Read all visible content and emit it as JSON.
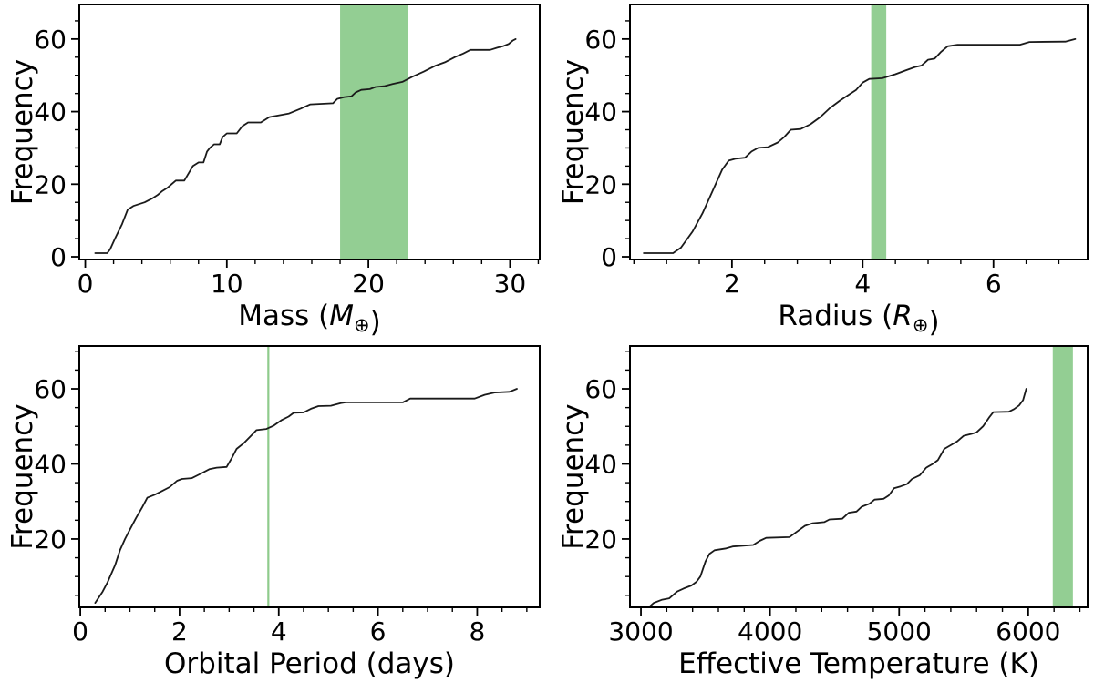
{
  "figure": {
    "background": "#ffffff",
    "text_color": "#000000",
    "accent_green_band": "#93ce93",
    "accent_green_line": "#8fcb8c",
    "curve_color": "#1a1a1a"
  },
  "chart_data": [
    {
      "id": "mass",
      "type": "line",
      "title": "",
      "ylabel": "Frequency",
      "xlabel_parts": [
        {
          "t": "Mass (",
          "s": "n"
        },
        {
          "t": "M",
          "s": "i"
        },
        {
          "t": "⊕",
          "s": "sub"
        },
        {
          "t": ")",
          "s": "n"
        }
      ],
      "xlim": [
        -0.42,
        32.1
      ],
      "ylim": [
        -0.75,
        69.5
      ],
      "xticks": [
        0,
        10,
        20,
        30
      ],
      "yticks": [
        0,
        20,
        40,
        60
      ],
      "x_minor_step": 2,
      "y_minor_step": 5,
      "grid": false,
      "legend": "none",
      "highlight": {
        "type": "band",
        "from": 18.0,
        "to": 22.8,
        "color": "#93ce93"
      },
      "points": [
        [
          0.7,
          1
        ],
        [
          1.55,
          1
        ],
        [
          1.75,
          2
        ],
        [
          2.1,
          5
        ],
        [
          2.6,
          9
        ],
        [
          3.0,
          13
        ],
        [
          3.4,
          14
        ],
        [
          4.2,
          15
        ],
        [
          4.7,
          16
        ],
        [
          5.1,
          17
        ],
        [
          5.4,
          18
        ],
        [
          5.8,
          19
        ],
        [
          6.1,
          20
        ],
        [
          6.4,
          21
        ],
        [
          7.0,
          21
        ],
        [
          7.3,
          23
        ],
        [
          7.6,
          25
        ],
        [
          8.0,
          26
        ],
        [
          8.35,
          26
        ],
        [
          8.6,
          29
        ],
        [
          8.8,
          30
        ],
        [
          9.1,
          31
        ],
        [
          9.5,
          31
        ],
        [
          9.7,
          33
        ],
        [
          10.0,
          34
        ],
        [
          10.7,
          34
        ],
        [
          11.1,
          36
        ],
        [
          11.5,
          37
        ],
        [
          12.4,
          37
        ],
        [
          13.0,
          38.5
        ],
        [
          13.7,
          39
        ],
        [
          14.4,
          39.5
        ],
        [
          15.2,
          40.8
        ],
        [
          15.9,
          42
        ],
        [
          17.5,
          42.3
        ],
        [
          17.8,
          43.5
        ],
        [
          18.3,
          44
        ],
        [
          18.8,
          44.2
        ],
        [
          19.1,
          45.3
        ],
        [
          19.5,
          46
        ],
        [
          20.1,
          46.2
        ],
        [
          20.5,
          46.8
        ],
        [
          21.1,
          47
        ],
        [
          21.7,
          47.6
        ],
        [
          22.4,
          48.2
        ],
        [
          23.1,
          49.6
        ],
        [
          23.9,
          51
        ],
        [
          24.7,
          52.6
        ],
        [
          25.4,
          53.6
        ],
        [
          26.1,
          55
        ],
        [
          26.7,
          56
        ],
        [
          27.2,
          57
        ],
        [
          28.6,
          57
        ],
        [
          29.1,
          57.6
        ],
        [
          29.5,
          58
        ],
        [
          29.9,
          58.6
        ],
        [
          30.2,
          59.6
        ],
        [
          30.4,
          60
        ]
      ]
    },
    {
      "id": "radius",
      "type": "line",
      "title": "",
      "ylabel": "Frequency",
      "xlabel_parts": [
        {
          "t": "Radius (",
          "s": "n"
        },
        {
          "t": "R",
          "s": "i"
        },
        {
          "t": "⊕",
          "s": "sub"
        },
        {
          "t": ")",
          "s": "n"
        }
      ],
      "xlim": [
        0.44,
        7.44
      ],
      "ylim": [
        -0.75,
        69.5
      ],
      "xticks": [
        2,
        4,
        6
      ],
      "yticks": [
        0,
        20,
        40,
        60
      ],
      "x_minor_step": 0.5,
      "y_minor_step": 5,
      "grid": false,
      "legend": "none",
      "highlight": {
        "type": "band",
        "from": 4.13,
        "to": 4.36,
        "color": "#93ce93"
      },
      "points": [
        [
          0.65,
          1
        ],
        [
          1.1,
          1
        ],
        [
          1.22,
          2.5
        ],
        [
          1.4,
          7
        ],
        [
          1.55,
          12
        ],
        [
          1.7,
          18
        ],
        [
          1.85,
          24
        ],
        [
          1.95,
          26.5
        ],
        [
          2.05,
          27
        ],
        [
          2.2,
          27.3
        ],
        [
          2.3,
          29
        ],
        [
          2.4,
          30
        ],
        [
          2.55,
          30.2
        ],
        [
          2.7,
          31.5
        ],
        [
          2.8,
          33
        ],
        [
          2.9,
          35
        ],
        [
          3.05,
          35.2
        ],
        [
          3.2,
          36.5
        ],
        [
          3.35,
          38.5
        ],
        [
          3.5,
          41
        ],
        [
          3.65,
          43
        ],
        [
          3.8,
          44.8
        ],
        [
          3.9,
          46
        ],
        [
          4.0,
          48
        ],
        [
          4.1,
          49
        ],
        [
          4.3,
          49.2
        ],
        [
          4.5,
          50.3
        ],
        [
          4.65,
          51.3
        ],
        [
          4.8,
          52.3
        ],
        [
          4.9,
          52.7
        ],
        [
          5.0,
          54.3
        ],
        [
          5.1,
          54.6
        ],
        [
          5.2,
          56.5
        ],
        [
          5.3,
          58
        ],
        [
          5.45,
          58.4
        ],
        [
          6.4,
          58.4
        ],
        [
          6.55,
          59.2
        ],
        [
          7.1,
          59.3
        ],
        [
          7.25,
          60
        ]
      ]
    },
    {
      "id": "period",
      "type": "line",
      "title": "",
      "ylabel": "Frequency",
      "xlabel_parts": [
        {
          "t": "Orbital Period (days)",
          "s": "n"
        }
      ],
      "xlim": [
        -0.02,
        9.26
      ],
      "ylim": [
        1.8,
        71.4
      ],
      "xticks": [
        0,
        2,
        4,
        6,
        8
      ],
      "yticks": [
        20,
        40,
        60
      ],
      "x_minor_step": 0.5,
      "y_minor_step": 5,
      "grid": false,
      "legend": "none",
      "highlight": {
        "type": "vline",
        "x": 3.79,
        "color": "#8fcb8c"
      },
      "points": [
        [
          0.3,
          3
        ],
        [
          0.45,
          6
        ],
        [
          0.55,
          8.5
        ],
        [
          0.7,
          13
        ],
        [
          0.8,
          17
        ],
        [
          0.9,
          20
        ],
        [
          1.0,
          22.5
        ],
        [
          1.12,
          25.5
        ],
        [
          1.25,
          28.5
        ],
        [
          1.35,
          31
        ],
        [
          1.5,
          31.8
        ],
        [
          1.65,
          32.8
        ],
        [
          1.8,
          33.8
        ],
        [
          1.95,
          35.5
        ],
        [
          2.05,
          36
        ],
        [
          2.25,
          36.2
        ],
        [
          2.4,
          37.2
        ],
        [
          2.6,
          38.6
        ],
        [
          2.75,
          39
        ],
        [
          2.95,
          39.2
        ],
        [
          3.05,
          41.5
        ],
        [
          3.15,
          44
        ],
        [
          3.3,
          45.6
        ],
        [
          3.45,
          47.6
        ],
        [
          3.55,
          49
        ],
        [
          3.75,
          49.3
        ],
        [
          3.9,
          50.2
        ],
        [
          4.05,
          51.6
        ],
        [
          4.2,
          52.6
        ],
        [
          4.3,
          53.6
        ],
        [
          4.5,
          53.7
        ],
        [
          4.65,
          54.7
        ],
        [
          4.8,
          55.4
        ],
        [
          5.05,
          55.5
        ],
        [
          5.25,
          56.2
        ],
        [
          5.35,
          56.4
        ],
        [
          6.5,
          56.4
        ],
        [
          6.65,
          57.4
        ],
        [
          7.95,
          57.4
        ],
        [
          8.15,
          58.4
        ],
        [
          8.35,
          59
        ],
        [
          8.65,
          59.2
        ],
        [
          8.8,
          60
        ]
      ]
    },
    {
      "id": "teff",
      "type": "line",
      "title": "",
      "ylabel": "Frequency",
      "xlabel_parts": [
        {
          "t": "Effective Temperature (K)",
          "s": "n"
        }
      ],
      "xlim": [
        2915,
        6460
      ],
      "ylim": [
        1.8,
        71.4
      ],
      "xticks": [
        3000,
        4000,
        5000,
        6000
      ],
      "yticks": [
        20,
        40,
        60
      ],
      "x_minor_step": 200,
      "y_minor_step": 5,
      "grid": false,
      "legend": "none",
      "highlight": {
        "type": "band",
        "from": 6190,
        "to": 6346,
        "color": "#93ce93"
      },
      "points": [
        [
          3060,
          1.8
        ],
        [
          3100,
          3
        ],
        [
          3160,
          3.8
        ],
        [
          3220,
          4.2
        ],
        [
          3280,
          6
        ],
        [
          3330,
          6.8
        ],
        [
          3390,
          7.6
        ],
        [
          3430,
          8.6
        ],
        [
          3460,
          10
        ],
        [
          3500,
          14
        ],
        [
          3530,
          16
        ],
        [
          3570,
          17
        ],
        [
          3660,
          17.5
        ],
        [
          3710,
          18
        ],
        [
          3870,
          18.4
        ],
        [
          3920,
          19.5
        ],
        [
          3970,
          20.3
        ],
        [
          4150,
          20.5
        ],
        [
          4210,
          22
        ],
        [
          4270,
          23.5
        ],
        [
          4330,
          24.2
        ],
        [
          4420,
          24.5
        ],
        [
          4460,
          25.2
        ],
        [
          4560,
          25.4
        ],
        [
          4610,
          27
        ],
        [
          4670,
          27.3
        ],
        [
          4710,
          28.6
        ],
        [
          4770,
          29.4
        ],
        [
          4810,
          30.5
        ],
        [
          4880,
          30.7
        ],
        [
          4920,
          31.6
        ],
        [
          4960,
          33.5
        ],
        [
          5010,
          34
        ],
        [
          5060,
          34.6
        ],
        [
          5100,
          36
        ],
        [
          5160,
          37
        ],
        [
          5210,
          39
        ],
        [
          5260,
          40
        ],
        [
          5300,
          41
        ],
        [
          5350,
          44
        ],
        [
          5400,
          45
        ],
        [
          5450,
          46
        ],
        [
          5500,
          47.5
        ],
        [
          5560,
          48
        ],
        [
          5600,
          48.4
        ],
        [
          5650,
          50
        ],
        [
          5700,
          52.5
        ],
        [
          5730,
          53.8
        ],
        [
          5850,
          53.9
        ],
        [
          5890,
          54.6
        ],
        [
          5930,
          55.6
        ],
        [
          5960,
          57
        ],
        [
          5985,
          60
        ]
      ]
    }
  ]
}
